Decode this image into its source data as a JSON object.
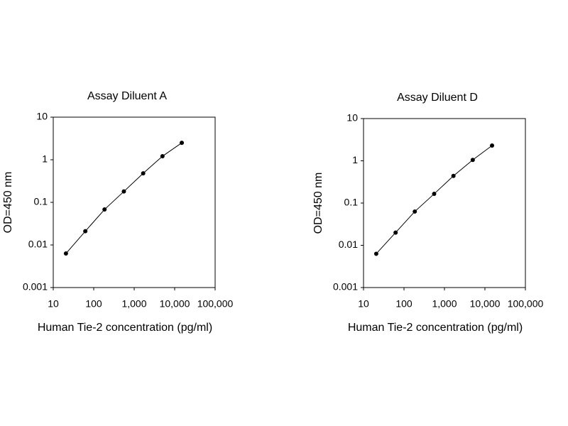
{
  "chart_data": [
    {
      "type": "line",
      "title": "Assay Diluent A",
      "xlabel": "Human Tie-2 concentration (pg/ml)",
      "ylabel": "OD=450 nm",
      "xscale": "log",
      "yscale": "log",
      "x": [
        20.6,
        62,
        185,
        556,
        1667,
        5000,
        15000
      ],
      "series": [
        {
          "name": "Assay Diluent A",
          "color": "#000000",
          "values": [
            0.0063,
            0.021,
            0.068,
            0.18,
            0.48,
            1.21,
            2.5
          ]
        }
      ],
      "xlim": [
        10,
        100000
      ],
      "ylim": [
        0.001,
        10
      ],
      "xticks": [
        10,
        100,
        {
          "value": 1000,
          "label": "1,000"
        },
        {
          "value": 10000,
          "label": "10,000"
        },
        {
          "value": 100000,
          "label": "100,000"
        }
      ],
      "yticks": [
        0.001,
        0.01,
        0.1,
        1,
        10
      ]
    },
    {
      "type": "line",
      "title": "Assay Diluent D",
      "xlabel": "Human Tie-2 concentration (pg/ml)",
      "ylabel": "OD=450 nm",
      "xscale": "log",
      "yscale": "log",
      "x": [
        20.6,
        62,
        185,
        556,
        1667,
        5000,
        15000
      ],
      "series": [
        {
          "name": "Assay Diluent D",
          "color": "#000000",
          "values": [
            0.0063,
            0.02,
            0.063,
            0.165,
            0.44,
            1.05,
            2.3
          ]
        }
      ],
      "xlim": [
        10,
        100000
      ],
      "ylim": [
        0.001,
        10
      ],
      "xticks": [
        10,
        100,
        {
          "value": 1000,
          "label": "1,000"
        },
        {
          "value": 10000,
          "label": "10,000"
        },
        {
          "value": 100000,
          "label": "100,000"
        }
      ],
      "yticks": [
        0.001,
        0.01,
        0.1,
        1,
        10
      ]
    }
  ]
}
